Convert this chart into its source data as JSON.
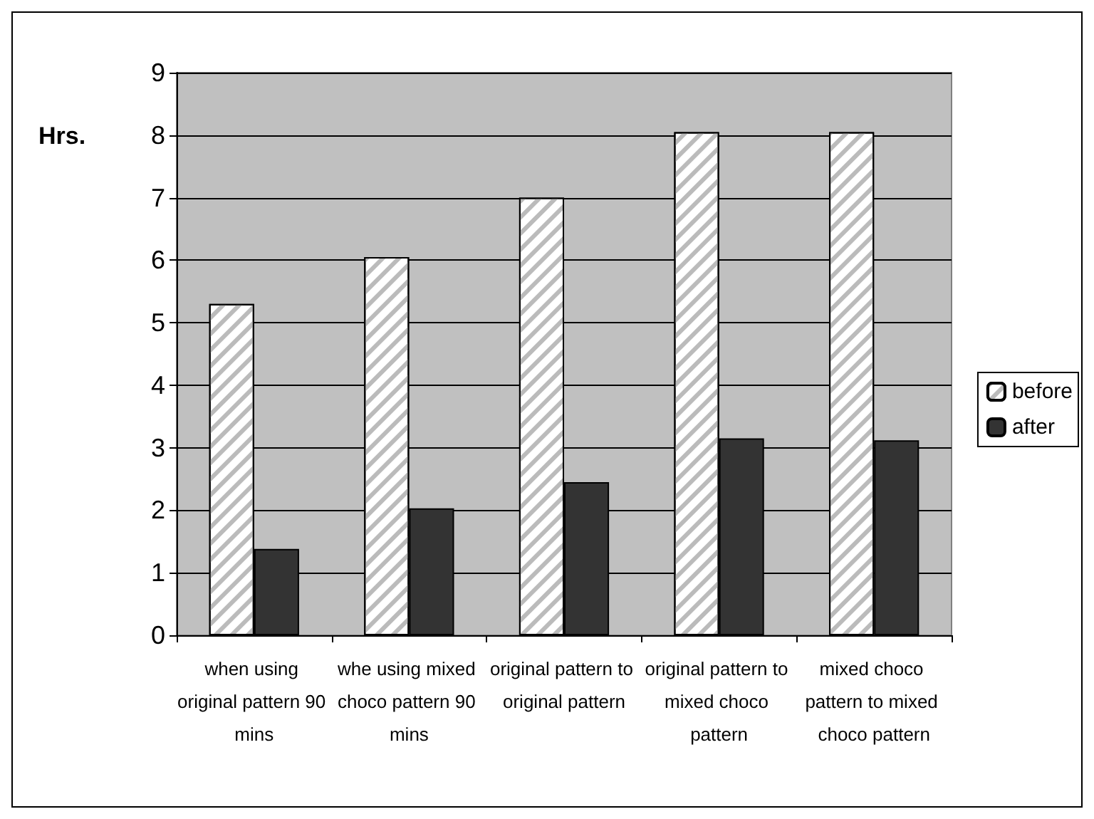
{
  "chart_data": {
    "type": "bar",
    "ylabel": "Hrs.",
    "categories": [
      "when using original pattern 90 mins",
      "whe using mixed choco pattern 90 mins",
      "original pattern to original pattern",
      "original pattern to mixed choco pattern",
      "mixed choco pattern to mixed choco pattern"
    ],
    "series": [
      {
        "name": "before",
        "color": "#ffffff",
        "values": [
          5.3,
          6.05,
          7.0,
          8.05,
          8.05
        ]
      },
      {
        "name": "after",
        "color": "#333333",
        "values": [
          1.38,
          2.03,
          2.45,
          3.15,
          3.12
        ]
      }
    ],
    "ylim": [
      0,
      9
    ],
    "yticks": [
      0,
      1,
      2,
      3,
      4,
      5,
      6,
      7,
      8,
      9
    ],
    "grid": "y",
    "legend": "right"
  }
}
